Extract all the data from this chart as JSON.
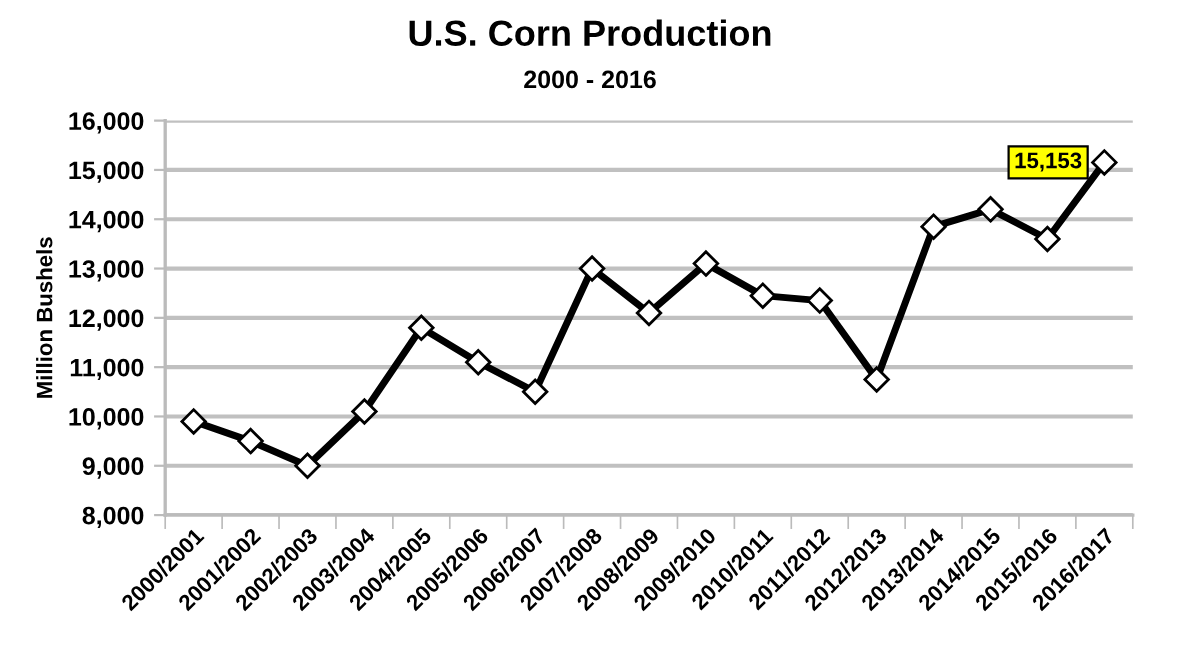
{
  "chart_data": {
    "type": "line",
    "title": "U.S. Corn Production",
    "subtitle": "2000 - 2016",
    "ylabel": "Million Bushels",
    "categories": [
      "2000/2001",
      "2001/2002",
      "2002/2003",
      "2003/2004",
      "2004/2005",
      "2005/2006",
      "2006/2007",
      "2007/2008",
      "2008/2009",
      "2009/2010",
      "2010/2011",
      "2011/2012",
      "2012/2013",
      "2013/2014",
      "2014/2015",
      "2015/2016",
      "2016/2017"
    ],
    "series": [
      {
        "color": "#000000",
        "values": [
          9900,
          9500,
          9000,
          10100,
          11800,
          11100,
          10500,
          13000,
          12100,
          13100,
          12450,
          12350,
          10750,
          13850,
          14200,
          13600,
          15153
        ],
        "value_labels": [
          null,
          null,
          null,
          null,
          null,
          null,
          null,
          null,
          null,
          null,
          null,
          null,
          null,
          null,
          null,
          null,
          "15,153"
        ]
      }
    ],
    "ylim": [
      8000,
      16000
    ],
    "yticks": [
      {
        "value": 8000,
        "label": "8,000"
      },
      {
        "value": 9000,
        "label": "9,000"
      },
      {
        "value": 10000,
        "label": "10,000"
      },
      {
        "value": 11000,
        "label": "11,000"
      },
      {
        "value": 12000,
        "label": "12,000"
      },
      {
        "value": 13000,
        "label": "13,000"
      },
      {
        "value": 14000,
        "label": "14,000"
      },
      {
        "value": 15000,
        "label": "15,000"
      },
      {
        "value": 16000,
        "label": "16,000"
      }
    ],
    "grid": "y",
    "marker": "diamond",
    "line_style": "solid"
  }
}
